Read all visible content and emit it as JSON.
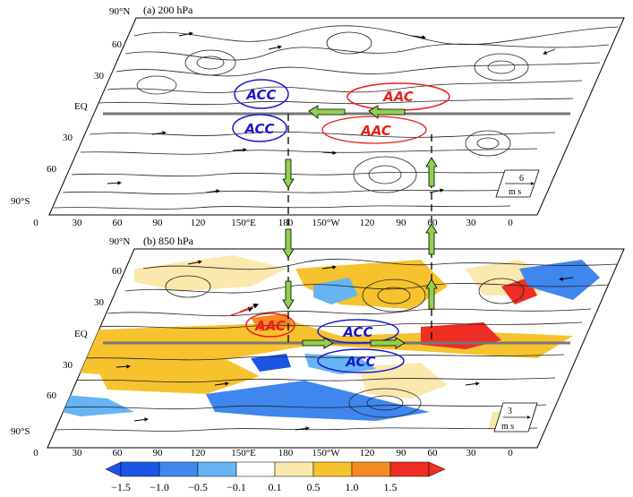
{
  "panels": [
    {
      "title": "(a)  200  hPa",
      "lat_labels": [
        "90°N",
        "60",
        "30",
        "EQ",
        "30",
        "60",
        "90°S"
      ],
      "lon_labels": [
        "0",
        "30",
        "60",
        "90",
        "120",
        "150°E",
        "180",
        "150°W",
        "120",
        "90",
        "60",
        "30",
        "0"
      ],
      "ref_vector_value": "6",
      "ref_vector_unit": "m s",
      "circulations": [
        {
          "label": "ACC",
          "color": "#1a1acc"
        },
        {
          "label": "AAC",
          "color": "#e8211a"
        },
        {
          "label": "ACC",
          "color": "#1a1acc"
        },
        {
          "label": "AAC",
          "color": "#e8211a"
        }
      ]
    },
    {
      "title": "(b)  850  hPa",
      "lat_labels": [
        "90°N",
        "60",
        "30",
        "EQ",
        "30",
        "60",
        "90°S"
      ],
      "lon_labels": [
        "0",
        "30",
        "60",
        "90",
        "120",
        "150°E",
        "180",
        "150°W",
        "120",
        "90",
        "60",
        "30",
        "0"
      ],
      "ref_vector_value": "3",
      "ref_vector_unit": "m s",
      "circulations": [
        {
          "label": "AAC",
          "color": "#e8211a"
        },
        {
          "label": "ACC",
          "color": "#1a1acc"
        },
        {
          "label": "ACC",
          "color": "#1a1acc"
        }
      ]
    }
  ],
  "colorbar": {
    "labels": [
      "−1.5",
      "−1.0",
      "−0.5",
      "−0.1",
      "0.1",
      "0.5",
      "1.0",
      "1.5"
    ],
    "colors": [
      "#1c55e6",
      "#3f86ee",
      "#66b4f3",
      "#ffffff",
      "#fbe8ad",
      "#f6c22d",
      "#f58a24",
      "#ee2d24"
    ]
  },
  "colors": {
    "arrow_fill": "#8fd14f",
    "blue": "#1a1acc",
    "red": "#e8211a",
    "warm": "#f6c22d",
    "cool": "#3f86ee"
  }
}
